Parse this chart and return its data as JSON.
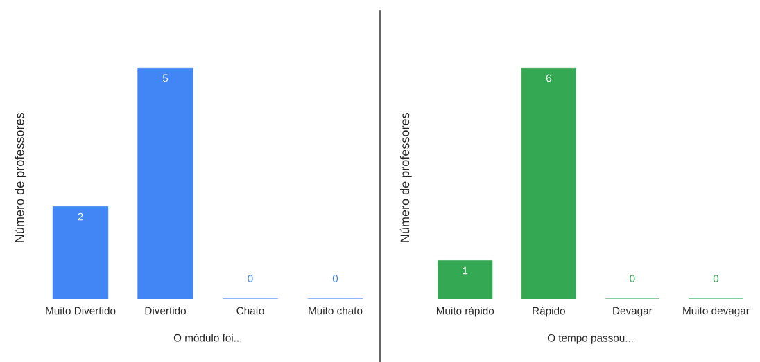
{
  "chart_data": [
    {
      "type": "bar",
      "categories": [
        "Muito Divertido",
        "Divertido",
        "Chato",
        "Muito chato"
      ],
      "values": [
        2,
        5,
        0,
        0
      ],
      "color": "#4285f4",
      "xlabel": "O módulo foi...",
      "ylabel": "Número de professores",
      "data_labels": true,
      "tick_labels": "x",
      "grid": false,
      "legend": false
    },
    {
      "type": "bar",
      "categories": [
        "Muito rápido",
        "Rápido",
        "Devagar",
        "Muito devagar"
      ],
      "values": [
        1,
        6,
        0,
        0
      ],
      "color": "#34a853",
      "xlabel": "O tempo passou...",
      "ylabel": "Número de professores",
      "data_labels": true,
      "tick_labels": "x",
      "grid": false,
      "legend": false
    }
  ]
}
